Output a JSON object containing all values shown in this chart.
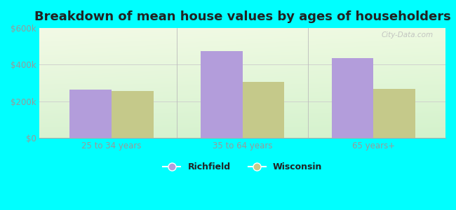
{
  "title": "Breakdown of mean house values by ages of householders",
  "categories": [
    "25 to 34 years",
    "35 to 64 years",
    "65 years+"
  ],
  "richfield_values": [
    265000,
    475000,
    435000
  ],
  "wisconsin_values": [
    258000,
    305000,
    268000
  ],
  "richfield_color": "#b39ddb",
  "wisconsin_color": "#c5c98a",
  "ylim": [
    0,
    600000
  ],
  "yticks": [
    0,
    200000,
    400000,
    600000
  ],
  "ytick_labels": [
    "$0",
    "$200k",
    "$400k",
    "$600k"
  ],
  "bar_width": 0.32,
  "figure_bg_color": "#00ffff",
  "title_fontsize": 13,
  "legend_labels": [
    "Richfield",
    "Wisconsin"
  ],
  "watermark": "City-Data.com",
  "tick_color": "#999999",
  "title_color": "#222222"
}
